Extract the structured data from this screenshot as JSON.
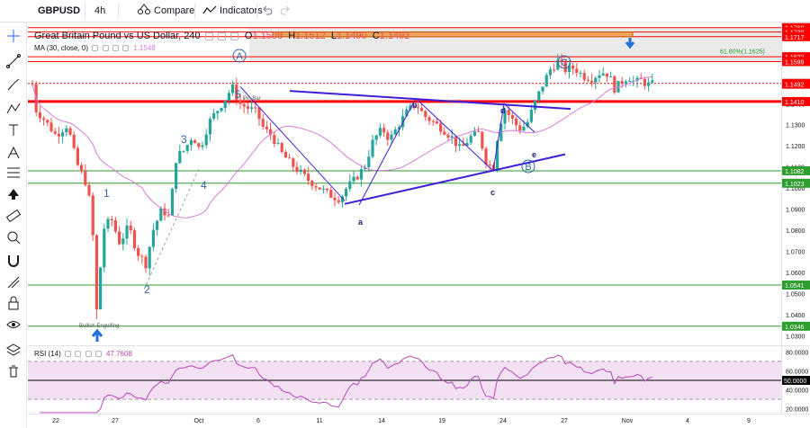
{
  "toolbar": {
    "symbol": "GBPUSD",
    "interval": "4h",
    "compare_label": "Compare",
    "indicators_label": "Indicators",
    "undo_icon": "undo-icon",
    "redo_icon": "redo-icon"
  },
  "left_tools": [
    "crosshair-icon",
    "trend-line-icon",
    "brush-icon",
    "pattern-icon",
    "text-icon",
    "fork-icon",
    "fib-icon",
    "arrow-icon",
    "ruler-icon",
    "zoom-icon",
    "magnet-icon",
    "measure-icon",
    "lock-icon",
    "eye-icon",
    "layers-icon",
    "trash-icon"
  ],
  "legend": {
    "title": "Great Britain Pound vs US Dollar, 240",
    "o_label": "O",
    "o": "1.1508",
    "h_label": "H",
    "h": "1.1512",
    "l_label": "L",
    "l": "1.1490",
    "c_label": "C",
    "c": "1.1492",
    "ma_label": "MA (30, close, 0)",
    "ma_value": "1.1548",
    "rsi_label": "RSI (14)",
    "rsi_value": "47.7608"
  },
  "colors": {
    "up": "#26a69a",
    "down": "#ef5350",
    "ma": "#d87cd9",
    "resistance": "#ff0000",
    "support": "#2e9e2e",
    "wave_line": "#3e1ed6",
    "label": "#2962ff",
    "rsi": "#ba47ba"
  },
  "chart_data": {
    "type": "candlestick",
    "x_ticks": [
      "22",
      "27",
      "Oct",
      "6",
      "11",
      "14",
      "19",
      "24",
      "27",
      "Nov",
      "4",
      "9"
    ],
    "price_ticks": [
      "1.1760",
      "1.1620",
      "1.1500",
      "1.1400",
      "1.1300",
      "1.1200",
      "1.1100",
      "1.1000",
      "1.0900",
      "1.0800",
      "1.0700",
      "1.0600",
      "1.0500",
      "1.0400",
      "1.0300"
    ],
    "ylim": [
      1.026,
      1.178
    ],
    "price_badges": [
      {
        "label": "1.1760",
        "kind": "red"
      },
      {
        "label": "1.1760",
        "kind": "blue"
      },
      {
        "label": "1.1739",
        "kind": "red"
      },
      {
        "label": "1.1717",
        "kind": "red"
      },
      {
        "label": "1.1622",
        "kind": "red"
      },
      {
        "label": "1.1599",
        "kind": "red"
      },
      {
        "label": "1.1496",
        "kind": "red"
      },
      {
        "label": "1.1492",
        "kind": "red"
      },
      {
        "label": "1.1410",
        "kind": "red"
      },
      {
        "label": "1.1082",
        "kind": "green"
      },
      {
        "label": "1.1023",
        "kind": "green"
      },
      {
        "label": "1.0541",
        "kind": "green"
      },
      {
        "label": "1.0346",
        "kind": "green"
      }
    ],
    "levels": [
      {
        "price": 1.176,
        "color": "red",
        "width": 1
      },
      {
        "price": 1.1739,
        "color": "red",
        "width": 1
      },
      {
        "price": 1.1717,
        "color": "red",
        "width": 1
      },
      {
        "price": 1.1622,
        "color": "red",
        "width": 1
      },
      {
        "price": 1.1599,
        "color": "red",
        "width": 1
      },
      {
        "price": 1.1496,
        "color": "red",
        "width": 1,
        "dashed": true
      },
      {
        "price": 1.141,
        "color": "red",
        "width": 3
      },
      {
        "price": 1.1082,
        "color": "green",
        "width": 1
      },
      {
        "price": 1.1023,
        "color": "green",
        "width": 1
      },
      {
        "price": 1.0541,
        "color": "green",
        "width": 1
      },
      {
        "price": 1.0346,
        "color": "green",
        "width": 1
      }
    ],
    "fib_label": "61.80%(1.1625)",
    "target_zone": {
      "top": 1.1739,
      "bottom": 1.1717
    },
    "annotations": {
      "wave_numbers": [
        "1",
        "2",
        "3",
        "4",
        "5"
      ],
      "abc_letters": [
        "a",
        "b",
        "c",
        "d",
        "e"
      ],
      "circled": [
        "A",
        "B",
        "C"
      ],
      "pin_bar": "Pin Bar",
      "bullish_engulfing": "Bullish Engulfing"
    },
    "rsi": {
      "ticks": [
        "80.0000",
        "60.0000",
        "50.0000",
        "40.0000",
        "20.0000"
      ],
      "value_badge": "50.0000",
      "overbought": 70,
      "oversold": 30,
      "ylim": [
        15,
        85
      ]
    }
  }
}
